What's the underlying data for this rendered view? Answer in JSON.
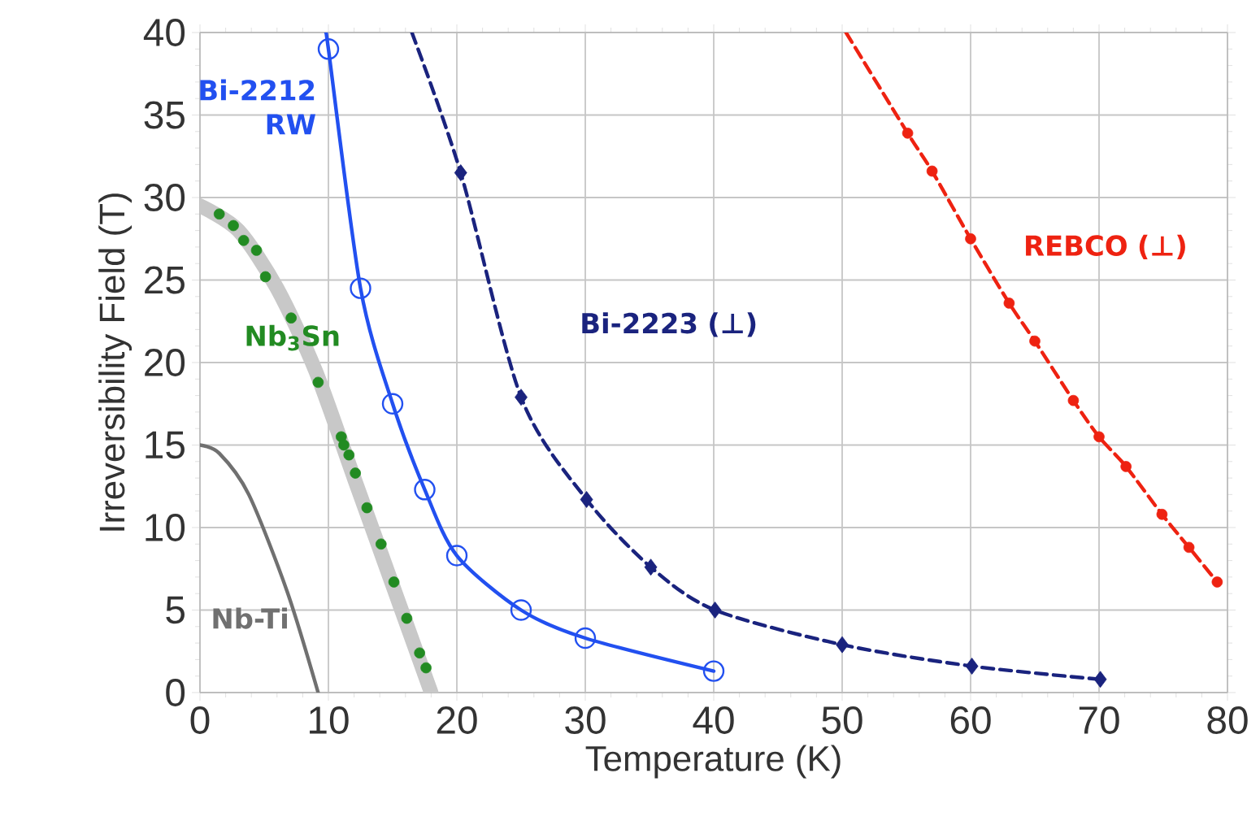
{
  "chart_data": {
    "type": "line",
    "xlabel": "Temperature (K)",
    "ylabel": "Irreversibility Field (T)",
    "xlim": [
      0,
      80
    ],
    "ylim": [
      0,
      40
    ],
    "xticks": [
      0,
      10,
      20,
      30,
      40,
      50,
      60,
      70,
      80
    ],
    "yticks": [
      0,
      5,
      10,
      15,
      20,
      25,
      30,
      35,
      40
    ],
    "grid": true,
    "series": [
      {
        "name": "Nb-Ti",
        "color": "#707070",
        "line_style": "solid",
        "marker": "none",
        "x": [
          0,
          1.5,
          3.8,
          6.8,
          9.2
        ],
        "values": [
          15,
          14.5,
          12,
          6.1,
          0
        ]
      },
      {
        "color": "#c8c8c8",
        "line_style": "solid",
        "marker": "none",
        "x": [
          0,
          3,
          6,
          9,
          12,
          15,
          18
        ],
        "values": [
          29.5,
          28,
          24.5,
          19.5,
          13,
          6.5,
          0
        ]
      },
      {
        "type": "scatter",
        "name": "Nb$_{3}$Sn",
        "color": "#228b22",
        "marker": "circle",
        "x": [
          1.5,
          2.6,
          3.4,
          4.4,
          5.1,
          7.1,
          9.2,
          11.0,
          11.2,
          11.6,
          12.1,
          13.0,
          14.1,
          15.1,
          16.1,
          17.1,
          17.6
        ],
        "values": [
          29.0,
          28.3,
          27.4,
          26.8,
          25.2,
          22.7,
          18.8,
          15.5,
          15.0,
          14.4,
          13.3,
          11.2,
          9.0,
          6.7,
          4.5,
          2.4,
          1.5
        ]
      },
      {
        "color": "#2250f0",
        "line_style": "solid",
        "marker": "none",
        "x": [
          9.8,
          10,
          12.5,
          15,
          17.5,
          20,
          25,
          30,
          40
        ],
        "values": [
          40,
          39,
          24.5,
          17.5,
          12.3,
          8.3,
          5,
          3.3,
          1.3
        ]
      },
      {
        "type": "scatter",
        "name": "Bi-2212 RW",
        "color": "#2250f0",
        "marker": "circle",
        "x": [
          10,
          12.5,
          15,
          17.5,
          20,
          25,
          30,
          40
        ],
        "values": [
          39,
          24.5,
          17.5,
          12.3,
          8.3,
          5,
          3.3,
          1.3
        ]
      },
      {
        "color": "#1a237e",
        "line_style": "dashed",
        "marker": "none",
        "x": [
          16.5,
          20.3,
          25,
          30.1,
          35.1,
          40.1,
          50,
          60.1,
          70.1
        ],
        "values": [
          40,
          31.5,
          17.9,
          11.7,
          7.6,
          5.0,
          2.9,
          1.6,
          0.8
        ]
      },
      {
        "type": "scatter",
        "name": "Bi-2223 (⊥)",
        "color": "#1a237e",
        "marker": "diamond",
        "x": [
          20.3,
          25,
          30.1,
          35.1,
          40.1,
          50,
          60.1,
          70.1
        ],
        "values": [
          31.5,
          17.9,
          11.7,
          7.6,
          5.0,
          2.9,
          1.6,
          0.8
        ]
      },
      {
        "color": "#ee2211",
        "line_style": "dashed",
        "marker": "none",
        "x": [
          50.3,
          55.1,
          57,
          60,
          63,
          65,
          68,
          70,
          72.1,
          74.9,
          77,
          79.2
        ],
        "values": [
          40,
          33.9,
          31.6,
          27.5,
          23.6,
          21.3,
          17.7,
          15.5,
          13.7,
          10.8,
          8.8,
          6.7
        ]
      },
      {
        "type": "scatter",
        "name": "REBCO (⊥)",
        "color": "#ee2211",
        "marker": "circle",
        "x": [
          55.1,
          57,
          60,
          63,
          65,
          68,
          70,
          72.1,
          74.9,
          77,
          79.2
        ],
        "values": [
          33.9,
          31.6,
          27.5,
          23.6,
          21.3,
          17.7,
          15.5,
          13.7,
          10.8,
          8.8,
          6.7
        ]
      }
    ]
  }
}
